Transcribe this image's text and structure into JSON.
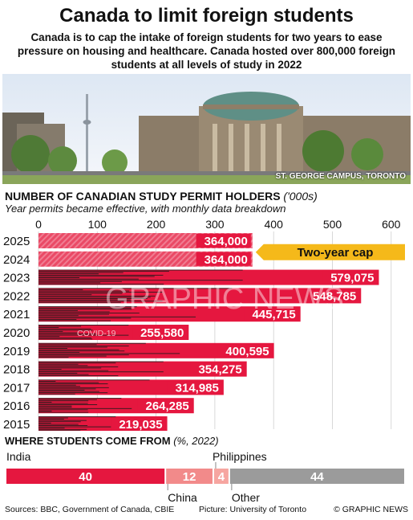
{
  "header": {
    "title": "Canada to limit foreign students",
    "subtitle": "Canada is to cap the intake of foreign students for two years to ease pressure on housing and healthcare. Canada hosted over 800,000 foreign students at all levels of study in 2022"
  },
  "photo": {
    "caption": "ST. GEORGE CAMPUS, TORONTO"
  },
  "chart_section": {
    "title": "NUMBER OF CANADIAN STUDY PERMIT HOLDERS",
    "unit": "('000s)",
    "subtitle": "Year permits became effective, with monthly data breakdown"
  },
  "chart_data": {
    "type": "bar",
    "orientation": "horizontal",
    "title": "NUMBER OF CANADIAN STUDY PERMIT HOLDERS",
    "unit": "('000s)",
    "categories": [
      "2025",
      "2024",
      "2023",
      "2022",
      "2021",
      "2020",
      "2019",
      "2018",
      "2017",
      "2016",
      "2015"
    ],
    "values": [
      364000,
      364000,
      579075,
      548785,
      445715,
      255580,
      400595,
      354275,
      314985,
      264285,
      219035
    ],
    "labels": [
      "364,000",
      "364,000",
      "579,075",
      "548,785",
      "445,715",
      "255,580",
      "400,595",
      "354,275",
      "314,985",
      "264,285",
      "219,035"
    ],
    "projected": [
      true,
      true,
      false,
      false,
      false,
      false,
      false,
      false,
      false,
      false,
      false
    ],
    "xticks": [
      "0",
      "100",
      "200",
      "300",
      "400",
      "500",
      "600"
    ],
    "xlim": [
      0,
      600
    ],
    "annotations": [
      {
        "text": "Two-year cap",
        "years": [
          "2025",
          "2024"
        ]
      },
      {
        "text": "COVID-19",
        "year": "2020"
      }
    ],
    "monthly_breakdown_note": "dark stripes show monthly data"
  },
  "origin_section": {
    "title": "WHERE STUDENTS COME FROM",
    "unit": "(%, 2022)",
    "segments": [
      {
        "label": "India",
        "value": 40,
        "display": "40",
        "color": "#e5173f"
      },
      {
        "label": "China",
        "value": 12,
        "display": "12",
        "color": "#f28a8a"
      },
      {
        "label": "Philippines",
        "value": 4,
        "display": "4",
        "color": "#f6a5a0"
      },
      {
        "label": "Other",
        "value": 44,
        "display": "44",
        "color": "#9b9b9b"
      }
    ]
  },
  "footer": {
    "sources": "Sources: BBC, Government of Canada, CBIE",
    "picture": "Picture: University of Toronto",
    "credit": "© GRAPHIC NEWS"
  },
  "watermark": "GRAPHIC NEWS",
  "colors": {
    "accent": "#e5173f",
    "cap_banner": "#f5b91a",
    "dark": "#222222"
  }
}
